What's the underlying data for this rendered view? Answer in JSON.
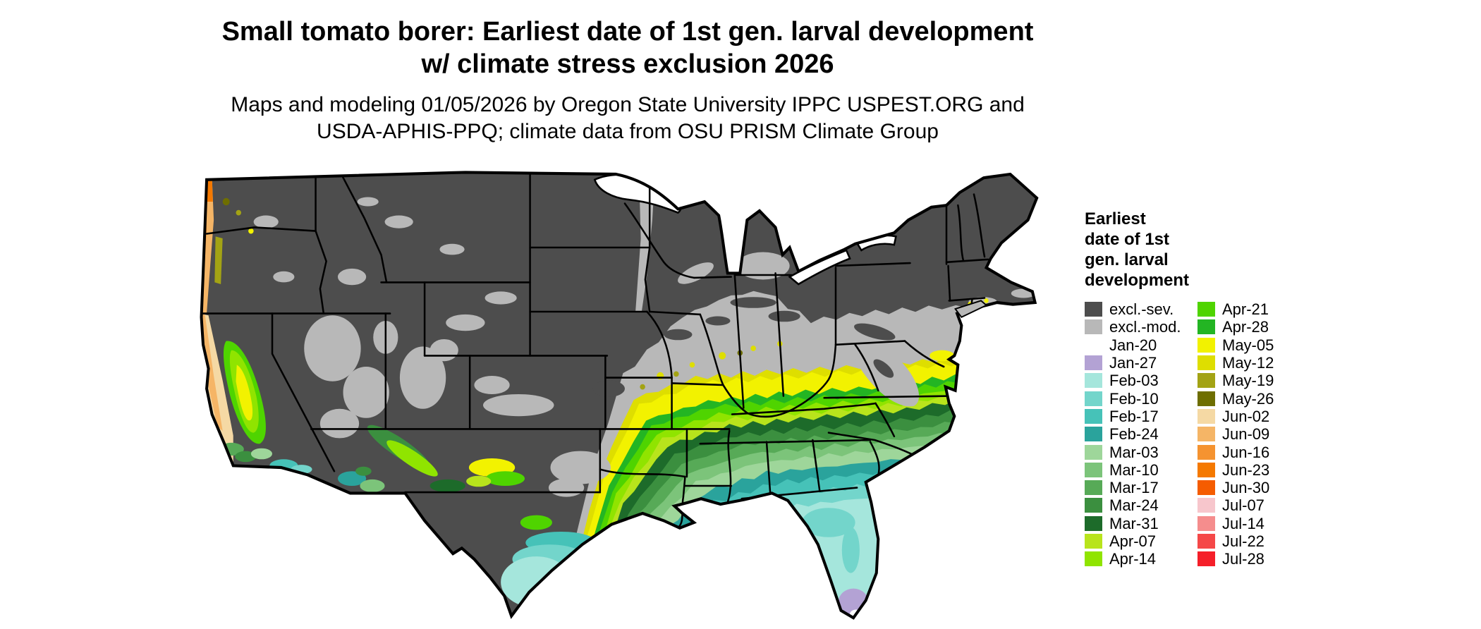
{
  "header": {
    "title_line1": "Small tomato borer: Earliest date of 1st gen. larval development",
    "title_line2": "w/ climate stress exclusion 2026",
    "subtitle_line1": "Maps and modeling 01/05/2026 by Oregon State University IPPC USPEST.ORG and",
    "subtitle_line2": "USDA-APHIS-PPQ; climate data from OSU PRISM Climate Group"
  },
  "legend": {
    "title_lines": [
      "Earliest",
      "date of 1st",
      "gen. larval",
      "development"
    ],
    "column1": [
      {
        "label": "excl.-sev.",
        "color": "#4d4d4d"
      },
      {
        "label": "excl.-mod.",
        "color": "#b8b8b8"
      },
      {
        "label": "Jan-20",
        "color": "#ffffff"
      },
      {
        "label": "Jan-27",
        "color": "#b3a2d4"
      },
      {
        "label": "Feb-03",
        "color": "#a5e6dc"
      },
      {
        "label": "Feb-10",
        "color": "#73d5cb"
      },
      {
        "label": "Feb-17",
        "color": "#46c2b8"
      },
      {
        "label": "Feb-24",
        "color": "#2aa39c"
      },
      {
        "label": "Mar-03",
        "color": "#9ed69a"
      },
      {
        "label": "Mar-10",
        "color": "#7cc47a"
      },
      {
        "label": "Mar-17",
        "color": "#57aa57"
      },
      {
        "label": "Mar-24",
        "color": "#3b8f3f"
      },
      {
        "label": "Mar-31",
        "color": "#1d6b2a"
      },
      {
        "label": "Apr-07",
        "color": "#b8e41c"
      },
      {
        "label": "Apr-14",
        "color": "#90e400"
      }
    ],
    "column2": [
      {
        "label": "Apr-21",
        "color": "#4fd400"
      },
      {
        "label": "Apr-28",
        "color": "#23b523"
      },
      {
        "label": "May-05",
        "color": "#f2f200"
      },
      {
        "label": "May-12",
        "color": "#dede00"
      },
      {
        "label": "May-19",
        "color": "#a3a314"
      },
      {
        "label": "May-26",
        "color": "#6e6e00"
      },
      {
        "label": "Jun-02",
        "color": "#f5d9a4"
      },
      {
        "label": "Jun-09",
        "color": "#f5b566"
      },
      {
        "label": "Jun-16",
        "color": "#f59330"
      },
      {
        "label": "Jun-23",
        "color": "#f57900"
      },
      {
        "label": "Jun-30",
        "color": "#f55c00"
      },
      {
        "label": "Jul-07",
        "color": "#f7c6cc"
      },
      {
        "label": "Jul-14",
        "color": "#f58d8d"
      },
      {
        "label": "Jul-22",
        "color": "#f54848"
      },
      {
        "label": "Jul-28",
        "color": "#f51f29"
      }
    ]
  },
  "map": {
    "background": "#ffffff",
    "border_color": "#000000"
  }
}
